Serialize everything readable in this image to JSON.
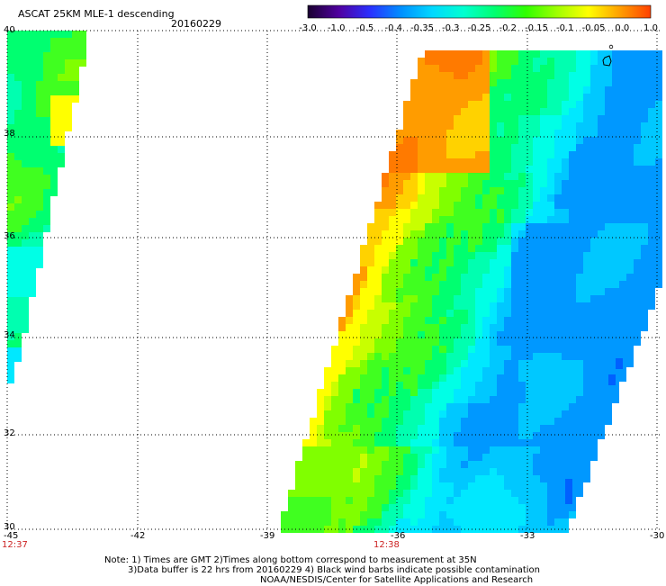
{
  "title": "ASCAT 25KM MLE-1 descending",
  "date": "20160229",
  "colorbar": {
    "labels": [
      "-3.0",
      "-1.0",
      "-0.5",
      "-0.4",
      "-0.35",
      "-0.3",
      "-0.25",
      "-0.2",
      "-0.15",
      "-0.1",
      "-0.05",
      "0.0",
      "1.0"
    ],
    "colors": [
      "#1a0030",
      "#5000a0",
      "#2a30ff",
      "#0090ff",
      "#00d8ff",
      "#00ffd0",
      "#00ff70",
      "#30ff00",
      "#a0ff00",
      "#ffff00",
      "#ffa000",
      "#ff4000"
    ]
  },
  "axes": {
    "lon_ticks": [
      "-45",
      "-42",
      "-39",
      "-36",
      "-33",
      "-30"
    ],
    "lat_ticks": [
      "40",
      "38",
      "36",
      "34",
      "32",
      "30"
    ]
  },
  "times": [
    {
      "label": "12:37"
    },
    {
      "label": "12:38"
    }
  ],
  "notes": {
    "line1": "Note: 1) Times are GMT 2)Times along bottom correspond to measurement at 35N",
    "line2": "3)Data buffer is 22 hrs from 20160229 4) Black wind barbs indicate possible contamination",
    "line3": "NOAA/NESDIS/Center for Satellite Applications and Research"
  }
}
